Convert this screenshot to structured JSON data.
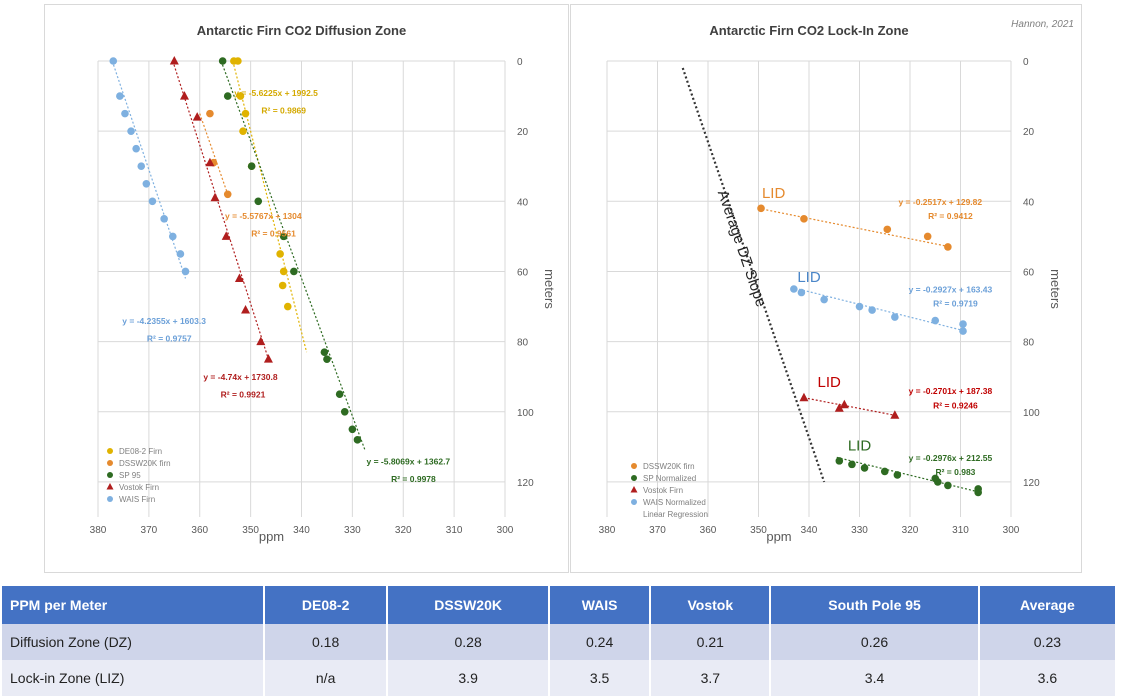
{
  "author_note": "Hannon, 2021",
  "chart_data": [
    {
      "id": "diffusion",
      "type": "scatter",
      "title": "Antarctic Firn CO2 Diffusion Zone",
      "xlabel": "ppm",
      "ylabel": "meters",
      "xlim": [
        380,
        300
      ],
      "ylim": [
        0,
        130
      ],
      "xticks": [
        380,
        370,
        360,
        350,
        340,
        330,
        320,
        310,
        300
      ],
      "yticks": [
        0,
        20,
        40,
        60,
        80,
        100,
        120
      ],
      "grid": true,
      "legend_position": "bottom-left",
      "series": [
        {
          "name": "DE08-2 Firn",
          "color": "#e0b300",
          "marker": "circle",
          "points": [
            [
              352.5,
              0
            ],
            [
              353.3,
              0
            ],
            [
              352,
              10
            ],
            [
              351,
              15
            ],
            [
              351.5,
              20
            ],
            [
              349.8,
              30
            ],
            [
              344.2,
              55
            ],
            [
              343.5,
              60
            ],
            [
              343.7,
              64
            ],
            [
              342.7,
              70
            ]
          ],
          "line": [
            [
              353.5,
              0
            ],
            [
              339,
              83
            ]
          ]
        },
        {
          "name": "DSSW20K firn",
          "color": "#e58a2e",
          "marker": "circle",
          "points": [
            [
              358,
              15
            ],
            [
              357.3,
              29
            ],
            [
              354.5,
              38
            ]
          ],
          "line": [
            [
              360,
              15
            ],
            [
              354.5,
              38
            ]
          ]
        },
        {
          "name": "SP 95",
          "color": "#2e6b22",
          "marker": "circle",
          "points": [
            [
              355.5,
              0
            ],
            [
              354.5,
              10
            ],
            [
              349.8,
              30
            ],
            [
              348.5,
              40
            ],
            [
              343.5,
              50
            ],
            [
              341.5,
              60
            ],
            [
              335.5,
              83
            ],
            [
              335,
              85
            ],
            [
              332.5,
              95
            ],
            [
              331.5,
              100
            ],
            [
              330,
              105
            ],
            [
              329,
              108
            ]
          ],
          "line": [
            [
              355.8,
              0
            ],
            [
              327.5,
              111
            ]
          ]
        },
        {
          "name": "Vostok Firn",
          "color": "#b01e1e",
          "marker": "triangle",
          "points": [
            [
              365,
              0
            ],
            [
              363,
              10
            ],
            [
              360.5,
              16
            ],
            [
              358,
              29
            ],
            [
              357,
              39
            ],
            [
              354.8,
              50
            ],
            [
              352.2,
              62
            ],
            [
              351,
              71
            ],
            [
              348,
              80
            ],
            [
              346.5,
              85
            ]
          ],
          "line": [
            [
              365.3,
              0
            ],
            [
              346.5,
              85
            ]
          ]
        },
        {
          "name": "WAIS Firn",
          "color": "#7eb0e0",
          "marker": "circle",
          "points": [
            [
              377,
              0
            ],
            [
              375.7,
              10
            ],
            [
              374.7,
              15
            ],
            [
              373.5,
              20
            ],
            [
              372.5,
              25
            ],
            [
              371.5,
              30
            ],
            [
              370.5,
              35
            ],
            [
              369.3,
              40
            ],
            [
              367,
              45
            ],
            [
              365.3,
              50
            ],
            [
              363.8,
              55
            ],
            [
              362.8,
              60
            ]
          ],
          "line": [
            [
              377.2,
              0
            ],
            [
              362.8,
              62
            ]
          ]
        }
      ],
      "annotations": [
        {
          "text": "y = -5.6225x + 1992.5",
          "color": "#d4a900",
          "x": 345,
          "y": 10
        },
        {
          "text": "R² = 0.9869",
          "color": "#d4a900",
          "x": 343.5,
          "y": 15
        },
        {
          "text": "y = -5.5767x + 1304",
          "color": "#e58a2e",
          "x": 347.5,
          "y": 45
        },
        {
          "text": "R² = 0.9561",
          "color": "#e58a2e",
          "x": 345.5,
          "y": 50
        },
        {
          "text": "y = -4.2355x + 1603.3",
          "color": "#6a9fd8",
          "x": 367,
          "y": 75
        },
        {
          "text": "R² = 0.9757",
          "color": "#6a9fd8",
          "x": 366,
          "y": 80
        },
        {
          "text": "y = -4.74x + 1730.8",
          "color": "#b01e1e",
          "x": 352,
          "y": 91
        },
        {
          "text": "R² = 0.9921",
          "color": "#b01e1e",
          "x": 351.5,
          "y": 96
        },
        {
          "text": "y = -5.8069x + 1362.7",
          "color": "#2e6b22",
          "x": 319,
          "y": 115
        },
        {
          "text": "R² = 0.9978",
          "color": "#2e6b22",
          "x": 318,
          "y": 120
        }
      ]
    },
    {
      "id": "lockin",
      "type": "scatter",
      "title": "Antarctic Firn CO2 Lock-In Zone",
      "xlabel": "ppm",
      "ylabel": "meters",
      "xlim": [
        380,
        300
      ],
      "ylim": [
        0,
        130
      ],
      "xticks": [
        380,
        370,
        360,
        350,
        340,
        330,
        320,
        310,
        300
      ],
      "yticks": [
        0,
        20,
        40,
        60,
        80,
        100,
        120
      ],
      "grid": true,
      "legend_position": "bottom-left",
      "series": [
        {
          "name": "DSSW20K firn",
          "color": "#e58a2e",
          "marker": "circle",
          "points": [
            [
              349.5,
              42
            ],
            [
              341,
              45
            ],
            [
              324.5,
              48
            ],
            [
              316.5,
              50
            ],
            [
              312.5,
              53
            ]
          ],
          "line": [
            [
              350,
              42
            ],
            [
              312,
              53
            ]
          ]
        },
        {
          "name": "SP Normalized",
          "color": "#2e6b22",
          "marker": "circle",
          "points": [
            [
              334,
              114
            ],
            [
              331.5,
              115
            ],
            [
              329,
              116
            ],
            [
              325,
              117
            ],
            [
              322.5,
              118
            ],
            [
              315,
              119
            ],
            [
              314.5,
              120
            ],
            [
              312.5,
              121
            ],
            [
              306.5,
              122
            ],
            [
              306.5,
              123
            ]
          ],
          "line": [
            [
              334.5,
              113
            ],
            [
              306,
              123
            ]
          ]
        },
        {
          "name": "Vostok Firn",
          "color": "#b01e1e",
          "marker": "triangle",
          "points": [
            [
              341,
              96
            ],
            [
              334,
              99
            ],
            [
              333,
              98
            ],
            [
              323,
              101
            ]
          ],
          "line": [
            [
              341,
              96
            ],
            [
              323,
              101
            ]
          ]
        },
        {
          "name": "WAIS Normalized",
          "color": "#7eb0e0",
          "marker": "circle",
          "points": [
            [
              343,
              65
            ],
            [
              341.5,
              66
            ],
            [
              337,
              68
            ],
            [
              330,
              70
            ],
            [
              327.5,
              71
            ],
            [
              323,
              73
            ],
            [
              315,
              74
            ],
            [
              309.5,
              75
            ],
            [
              309.5,
              77
            ]
          ],
          "line": [
            [
              343.5,
              64.5
            ],
            [
              309,
              77
            ]
          ]
        },
        {
          "name": "Linear Regression",
          "color": "#999999",
          "marker": "none",
          "points": []
        }
      ],
      "dz_slope_line": [
        [
          365,
          2
        ],
        [
          337,
          120
        ]
      ],
      "dz_slope_label": "Average DZ Slope",
      "lid_labels": [
        {
          "text": "LID",
          "color": "#e58a2e",
          "x": 347,
          "y": 39
        },
        {
          "text": "LID",
          "color": "#4a86c8",
          "x": 340,
          "y": 63
        },
        {
          "text": "LID",
          "color": "#c00000",
          "x": 336,
          "y": 93
        },
        {
          "text": "LID",
          "color": "#2e6b22",
          "x": 330,
          "y": 111
        }
      ],
      "annotations": [
        {
          "text": "y = -0.2517x + 129.82",
          "color": "#e58a2e",
          "x": 314,
          "y": 41
        },
        {
          "text": "R² = 0.9412",
          "color": "#e58a2e",
          "x": 312,
          "y": 45
        },
        {
          "text": "y = -0.2927x + 163.43",
          "color": "#6a9fd8",
          "x": 312,
          "y": 66
        },
        {
          "text": "R² = 0.9719",
          "color": "#6a9fd8",
          "x": 311,
          "y": 70
        },
        {
          "text": "y = -0.2701x + 187.38",
          "color": "#c00000",
          "x": 312,
          "y": 95
        },
        {
          "text": "R² = 0.9246",
          "color": "#c00000",
          "x": 311,
          "y": 99
        },
        {
          "text": "y = -0.2976x + 212.55",
          "color": "#2e6b22",
          "x": 312,
          "y": 114
        },
        {
          "text": "R² = 0.983",
          "color": "#2e6b22",
          "x": 311,
          "y": 118
        }
      ]
    }
  ],
  "table": {
    "headers": [
      "PPM per Meter",
      "DE08-2",
      "DSSW20K",
      "WAIS",
      "Vostok",
      "South Pole 95",
      "Average"
    ],
    "rows": [
      [
        "Diffusion Zone (DZ)",
        "0.18",
        "0.28",
        "0.24",
        "0.21",
        "0.26",
        "0.23"
      ],
      [
        "Lock-in Zone (LIZ)",
        "n/a",
        "3.9",
        "3.5",
        "3.7",
        "3.4",
        "3.6"
      ]
    ]
  }
}
